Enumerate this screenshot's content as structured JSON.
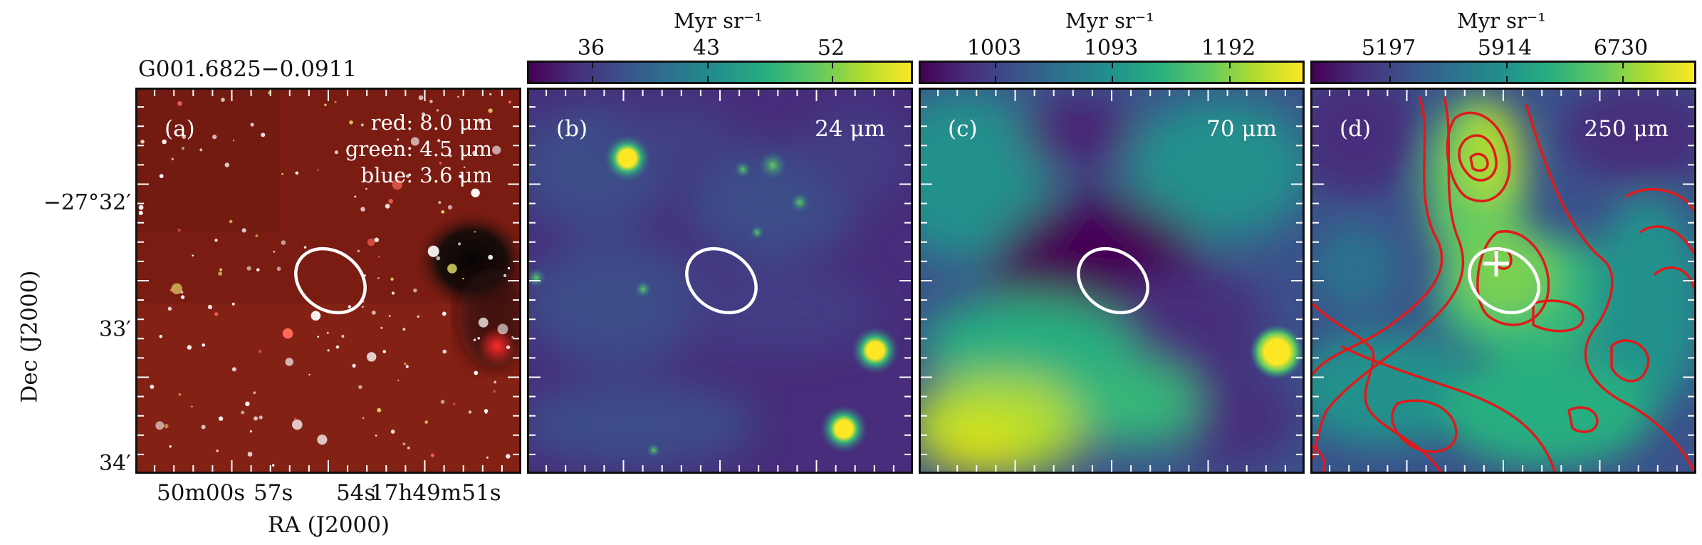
{
  "figure": {
    "source_name": "G001.6825−0.0911",
    "y_axis_label": "Dec (J2000)",
    "x_axis_label": "RA (J2000)",
    "y_ticks": [
      "−27°32′",
      "33′",
      "34′"
    ],
    "x_ticks": [
      "50m00s",
      "57s",
      "54s",
      "17h49m51s"
    ]
  },
  "panels": [
    {
      "id": "a",
      "label": "(a)",
      "rgb_legend": [
        "red: 8.0 μm",
        "green: 4.5 μm",
        "blue: 3.6 μm"
      ]
    },
    {
      "id": "b",
      "label": "(b)",
      "wavelength": "24 μm",
      "colorbar": {
        "unit": "Myr sr⁻¹",
        "ticks": [
          "36",
          "43",
          "52"
        ]
      }
    },
    {
      "id": "c",
      "label": "(c)",
      "wavelength": "70 μm",
      "colorbar": {
        "unit": "Myr sr⁻¹",
        "ticks": [
          "1003",
          "1093",
          "1192"
        ]
      }
    },
    {
      "id": "d",
      "label": "(d)",
      "wavelength": "250 μm",
      "colorbar": {
        "unit": "Myr sr⁻¹",
        "ticks": [
          "5197",
          "5914",
          "6730"
        ]
      }
    }
  ],
  "colors": {
    "colormap": "viridis",
    "ellipse": "#ffffff",
    "contours": "#e01a1a"
  }
}
